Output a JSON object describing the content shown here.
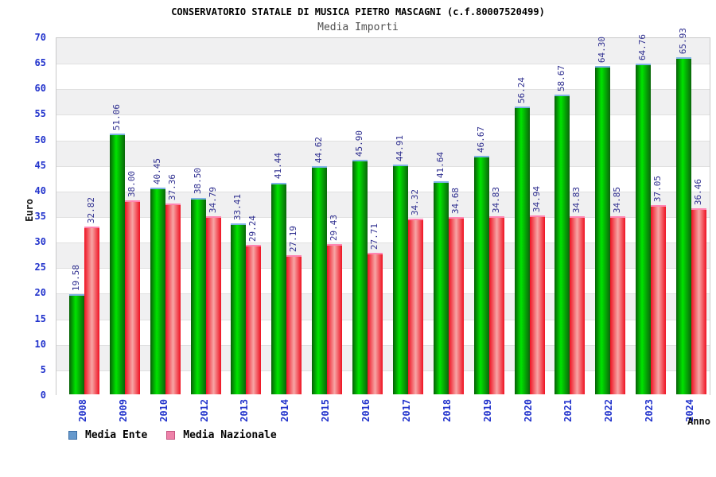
{
  "header": {
    "title": "CONSERVATORIO STATALE DI MUSICA PIETRO MASCAGNI (c.f.80007520499)",
    "subtitle": "Media Importi"
  },
  "chart_data": {
    "type": "bar",
    "title": "CONSERVATORIO STATALE DI MUSICA PIETRO MASCAGNI (c.f.80007520499)",
    "subtitle": "Media Importi",
    "xlabel": "Anno",
    "ylabel": "Euro",
    "ylim": [
      0,
      70
    ],
    "ytick_step": 5,
    "grid": "horizontal-bands",
    "legend_position": "bottom-left",
    "categories": [
      "2008",
      "2009",
      "2010",
      "2012",
      "2013",
      "2014",
      "2015",
      "2016",
      "2017",
      "2018",
      "2019",
      "2020",
      "2021",
      "2022",
      "2023",
      "2024"
    ],
    "series": [
      {
        "name": "Media Ente",
        "values": [
          19.58,
          51.06,
          40.45,
          38.5,
          33.41,
          41.44,
          44.62,
          45.9,
          44.91,
          41.64,
          46.67,
          56.24,
          58.67,
          64.3,
          64.76,
          65.93
        ]
      },
      {
        "name": "Media Nazionale",
        "values": [
          32.82,
          38.0,
          37.36,
          34.79,
          29.24,
          27.19,
          29.43,
          27.71,
          34.32,
          34.68,
          34.83,
          34.94,
          34.83,
          34.85,
          37.05,
          36.46
        ]
      }
    ],
    "colors": {
      "ente_bar": "#00c400",
      "ente_bar_dark": "#075f07",
      "ente_cap": "#7fb2e5",
      "nazionale_bar": "#ef1222",
      "nazionale_bar_light": "#f7a6a6",
      "nazionale_cap": "#ff85b2",
      "legend_ente_swatch": "#6699cc",
      "legend_nazionale_swatch": "#ee82a9",
      "axis_tick_text": "#2233cc",
      "value_label_text": "#2e2e8f",
      "band_gray": "#f0f0f1",
      "band_white": "#ffffff"
    }
  }
}
